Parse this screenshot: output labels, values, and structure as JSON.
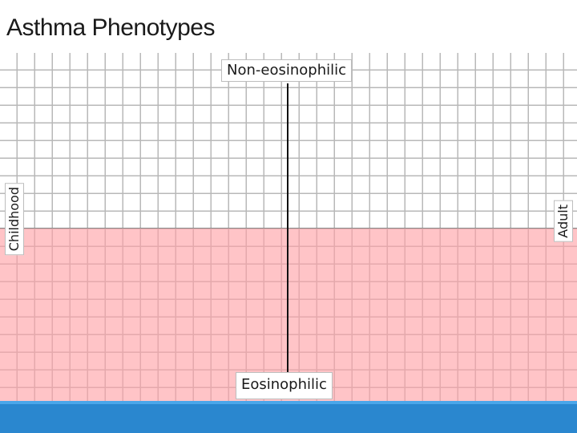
{
  "title": "Asthma Phenotypes",
  "axes": {
    "top": "Non-eosinophilic",
    "bottom": "Eosinophilic",
    "left": "Childhood",
    "right": "Adult"
  },
  "colors": {
    "band": "#ffa0a5",
    "footer": "#2a87cf",
    "axis": "#111111"
  }
}
